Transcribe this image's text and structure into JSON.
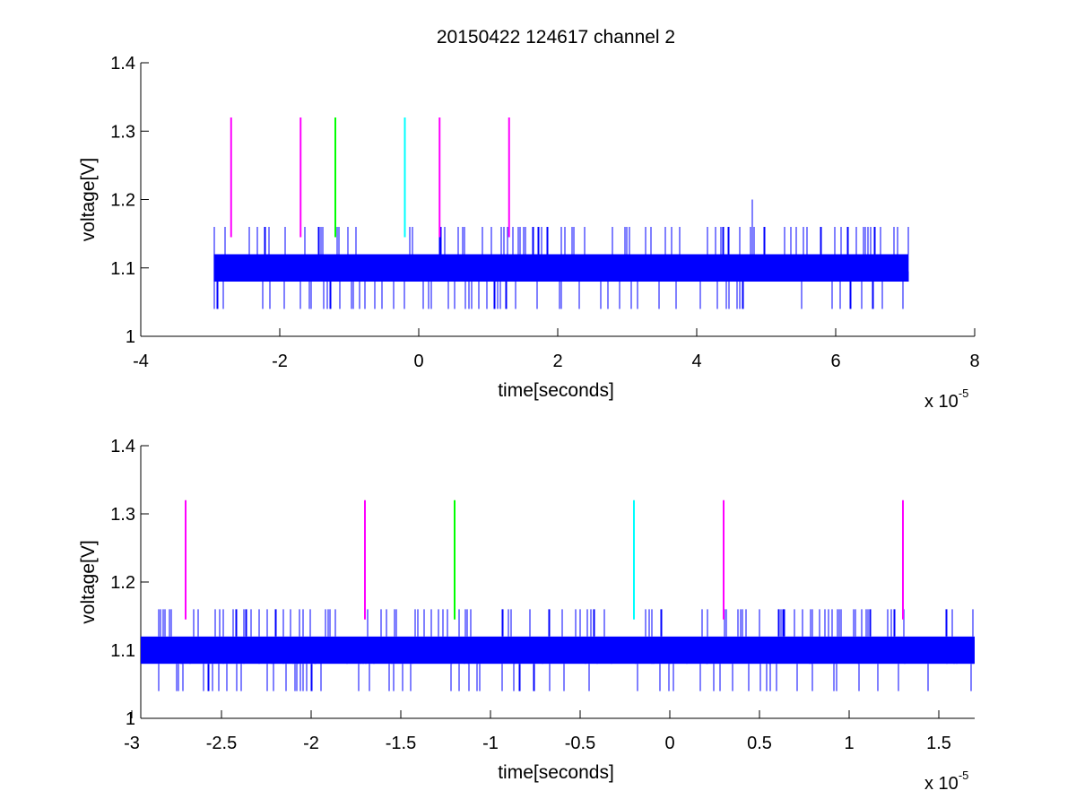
{
  "title": "20150422 124617 channel 2",
  "chart_data": [
    {
      "type": "line",
      "title": "20150422 124617 channel 2",
      "xlabel": "time[seconds]",
      "ylabel": "voltage[V]",
      "xlim": [
        -4e-05,
        8e-05
      ],
      "ylim": [
        1,
        1.4
      ],
      "x_ticks": [
        -4e-05,
        -2e-05,
        0,
        2e-05,
        4e-05,
        6e-05,
        8e-05
      ],
      "x_tick_labels": [
        "-4",
        "-2",
        "0",
        "2",
        "4",
        "6",
        "8"
      ],
      "y_ticks": [
        1,
        1.1,
        1.2,
        1.3,
        1.4
      ],
      "y_tick_labels": [
        "1",
        "1.1",
        "1.2",
        "1.3",
        "1.4"
      ],
      "x_multiplier": {
        "base": "x 10",
        "exponent": "-5"
      },
      "grid": false,
      "signal": {
        "color": "#0000ff",
        "t_start": -2.95e-05,
        "t_end": 7.05e-05,
        "band": [
          1.08,
          1.12
        ],
        "spike_high": 1.16,
        "spike_low": 1.04,
        "peak": {
          "t": 4.8e-05,
          "v": 1.2
        }
      },
      "markers": [
        {
          "t": -2.7e-05,
          "color": "#ff00ff",
          "v_low": 1.145,
          "v_high": 1.32
        },
        {
          "t": -1.7e-05,
          "color": "#ff00ff",
          "v_low": 1.145,
          "v_high": 1.32
        },
        {
          "t": -1.2e-05,
          "color": "#00ff00",
          "v_low": 1.145,
          "v_high": 1.32
        },
        {
          "t": -2e-06,
          "color": "#00ffff",
          "v_low": 1.145,
          "v_high": 1.32
        },
        {
          "t": 3e-06,
          "color": "#ff00ff",
          "v_low": 1.145,
          "v_high": 1.32
        },
        {
          "t": 1.3e-05,
          "color": "#ff00ff",
          "v_low": 1.145,
          "v_high": 1.32
        }
      ]
    },
    {
      "type": "line",
      "xlabel": "time[seconds]",
      "ylabel": "voltage[V]",
      "xlim": [
        -2.95e-05,
        1.7e-05
      ],
      "ylim": [
        1,
        1.4
      ],
      "x_ticks": [
        -3e-05,
        -2.5e-05,
        -2e-05,
        -1.5e-05,
        -1e-05,
        -5e-06,
        0,
        5e-06,
        1e-05,
        1.5e-05
      ],
      "x_tick_labels": [
        "-3",
        "-2.5",
        "-2",
        "-1.5",
        "-1",
        "-0.5",
        "0",
        "0.5",
        "1",
        "1.5"
      ],
      "y_ticks": [
        1,
        1.1,
        1.2,
        1.3,
        1.4
      ],
      "y_tick_labels": [
        "1",
        "1.1",
        "1.2",
        "1.3",
        "1.4"
      ],
      "x_multiplier": {
        "base": "x 10",
        "exponent": "-5"
      },
      "grid": false,
      "signal": {
        "color": "#0000ff",
        "t_start": -2.95e-05,
        "t_end": 1.7e-05,
        "band": [
          1.08,
          1.12
        ],
        "spike_high": 1.16,
        "spike_low": 1.04
      },
      "markers": [
        {
          "t": -2.7e-05,
          "color": "#ff00ff",
          "v_low": 1.145,
          "v_high": 1.32
        },
        {
          "t": -1.7e-05,
          "color": "#ff00ff",
          "v_low": 1.145,
          "v_high": 1.32
        },
        {
          "t": -1.2e-05,
          "color": "#00ff00",
          "v_low": 1.145,
          "v_high": 1.32
        },
        {
          "t": -2e-06,
          "color": "#00ffff",
          "v_low": 1.145,
          "v_high": 1.32
        },
        {
          "t": 3e-06,
          "color": "#ff00ff",
          "v_low": 1.145,
          "v_high": 1.32
        },
        {
          "t": 1.3e-05,
          "color": "#ff00ff",
          "v_low": 1.145,
          "v_high": 1.32
        }
      ]
    }
  ]
}
